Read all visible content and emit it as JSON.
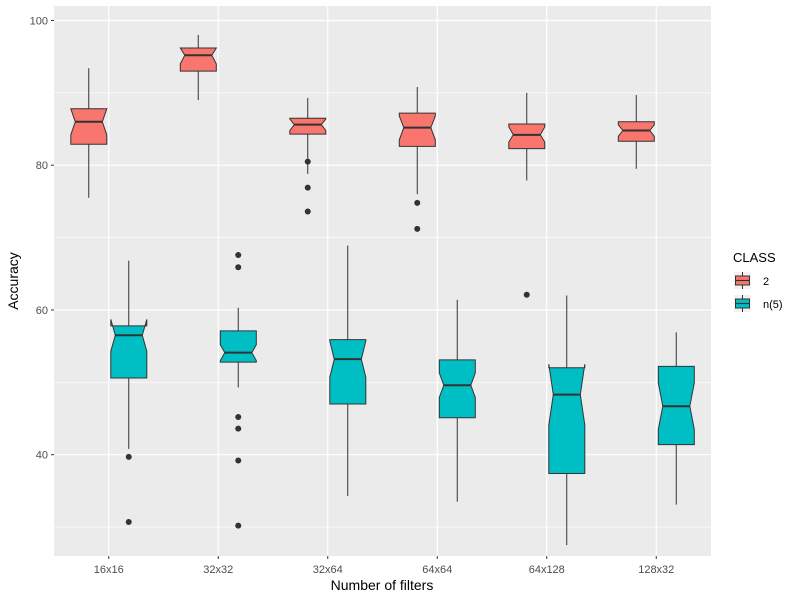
{
  "chart_data": {
    "type": "boxplot",
    "notched": true,
    "title": "",
    "xlabel": "Number of filters",
    "ylabel": "Accuracy",
    "ylim": [
      26,
      102
    ],
    "yticks": [
      40,
      60,
      80,
      100
    ],
    "categories": [
      "16x16",
      "32x32",
      "32x64",
      "64x64",
      "64x128",
      "128x32"
    ],
    "legend": {
      "title": "CLASS",
      "position": "right"
    },
    "series": [
      {
        "name": "2",
        "color": "#F8766D",
        "boxes": [
          {
            "whisker_low": 75.5,
            "q1": 82.9,
            "median": 86.0,
            "q3": 87.8,
            "whisker_high": 93.4,
            "notch_low": 84.2,
            "notch_high": 87.8,
            "outliers": []
          },
          {
            "whisker_low": 89.0,
            "q1": 93.0,
            "median": 95.2,
            "q3": 96.2,
            "whisker_high": 98.0,
            "notch_low": 94.0,
            "notch_high": 96.2,
            "outliers": []
          },
          {
            "whisker_low": 78.8,
            "q1": 84.3,
            "median": 85.6,
            "q3": 86.5,
            "whisker_high": 89.3,
            "notch_low": 84.8,
            "notch_high": 86.4,
            "outliers": [
              80.5,
              76.9,
              73.6
            ]
          },
          {
            "whisker_low": 76.0,
            "q1": 82.6,
            "median": 85.2,
            "q3": 87.2,
            "whisker_high": 90.8,
            "notch_low": 83.5,
            "notch_high": 86.8,
            "outliers": [
              74.8,
              71.2
            ]
          },
          {
            "whisker_low": 77.9,
            "q1": 82.3,
            "median": 84.2,
            "q3": 85.7,
            "whisker_high": 90.0,
            "notch_low": 83.2,
            "notch_high": 85.3,
            "outliers": [
              62.1
            ]
          },
          {
            "whisker_low": 79.5,
            "q1": 83.3,
            "median": 84.8,
            "q3": 86.0,
            "whisker_high": 89.7,
            "notch_low": 84.0,
            "notch_high": 85.6,
            "outliers": []
          }
        ]
      },
      {
        "name": "n(5)",
        "color": "#00BFC4",
        "boxes": [
          {
            "whisker_low": 40.8,
            "q1": 50.6,
            "median": 56.5,
            "q3": 57.8,
            "whisker_high": 66.8,
            "notch_low": 54.3,
            "notch_high": 58.7,
            "outliers": [
              39.7,
              30.7
            ]
          },
          {
            "whisker_low": 49.3,
            "q1": 52.8,
            "median": 54.1,
            "q3": 57.1,
            "whisker_high": 60.3,
            "notch_low": 53.0,
            "notch_high": 55.2,
            "outliers": [
              67.6,
              65.9,
              45.2,
              43.6,
              39.2,
              30.2
            ]
          },
          {
            "whisker_low": 34.3,
            "q1": 47.0,
            "median": 53.2,
            "q3": 55.9,
            "whisker_high": 68.9,
            "notch_low": 50.7,
            "notch_high": 55.7,
            "outliers": []
          },
          {
            "whisker_low": 33.5,
            "q1": 45.1,
            "median": 49.6,
            "q3": 53.1,
            "whisker_high": 61.4,
            "notch_low": 47.9,
            "notch_high": 51.3,
            "outliers": []
          },
          {
            "whisker_low": 27.5,
            "q1": 37.4,
            "median": 48.3,
            "q3": 52.0,
            "whisker_high": 62.0,
            "notch_low": 44.1,
            "notch_high": 52.5,
            "outliers": []
          },
          {
            "whisker_low": 33.1,
            "q1": 41.4,
            "median": 46.7,
            "q3": 52.2,
            "whisker_high": 56.9,
            "notch_low": 43.5,
            "notch_high": 49.9,
            "outliers": []
          }
        ]
      }
    ]
  }
}
